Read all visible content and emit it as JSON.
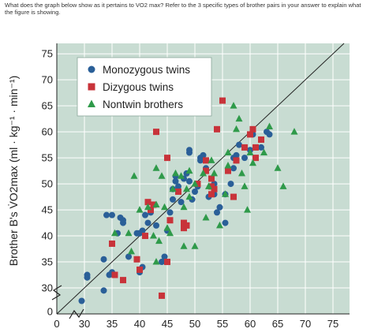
{
  "question": "What does the graph below show as it pertains to VO2 max? Refer to the 3 specific types of brother pairs in your answer to explain what the figure is showing.",
  "chart_data": {
    "type": "scatter",
    "title": "",
    "xlabel": "",
    "ylabel": "Brother B's V̇O2max (ml · kg⁻¹ · min⁻¹)",
    "xlim": [
      25,
      78
    ],
    "ylim": [
      25,
      77
    ],
    "x_ticks": [
      "0",
      "30",
      "35",
      "40",
      "45",
      "50",
      "55",
      "60",
      "65",
      "70",
      "75"
    ],
    "y_ticks": [
      "0",
      "30",
      "35",
      "40",
      "45",
      "50",
      "55",
      "60",
      "65",
      "70",
      "75"
    ],
    "axis_break": true,
    "grid": true,
    "identity_line": true,
    "legend_position": "top-left",
    "colors": {
      "plot_bg": "#c8dcd2",
      "grid": "#ffffff",
      "mono": "#2a5f98",
      "diz": "#c8333a",
      "nonw": "#2f9a4a"
    },
    "series": [
      {
        "name": "Monozygous twins",
        "marker": "circle",
        "color": "#2a5f98",
        "points": [
          [
            29.5,
            27.5
          ],
          [
            30.5,
            32.5
          ],
          [
            30.5,
            32
          ],
          [
            33.5,
            29.5
          ],
          [
            33.5,
            35.5
          ],
          [
            34,
            44
          ],
          [
            34.5,
            32.5
          ],
          [
            35,
            33
          ],
          [
            35,
            44
          ],
          [
            36.5,
            43.5
          ],
          [
            37,
            42.5
          ],
          [
            37,
            43
          ],
          [
            39.5,
            40.5
          ],
          [
            40,
            40.5
          ],
          [
            40.5,
            41
          ],
          [
            40,
            33
          ],
          [
            40.5,
            34
          ],
          [
            41,
            44
          ],
          [
            41.5,
            42.5
          ],
          [
            42,
            44.5
          ],
          [
            43,
            42
          ],
          [
            44.5,
            36
          ],
          [
            45,
            41
          ],
          [
            45.5,
            44.5
          ],
          [
            46,
            49
          ],
          [
            46.5,
            51.5
          ],
          [
            46.5,
            50.5
          ],
          [
            47.5,
            46.5
          ],
          [
            48,
            51
          ],
          [
            48.5,
            52
          ],
          [
            49,
            50.5
          ],
          [
            49,
            56
          ],
          [
            49,
            56.5
          ],
          [
            49.5,
            47
          ],
          [
            50,
            48.5
          ],
          [
            50.5,
            49.5
          ],
          [
            51,
            55
          ],
          [
            51,
            54.5
          ],
          [
            51.5,
            55.5
          ],
          [
            52,
            53
          ],
          [
            52.5,
            47.5
          ],
          [
            53.5,
            50
          ],
          [
            53.5,
            48
          ],
          [
            54,
            44.5
          ],
          [
            54.5,
            45.5
          ],
          [
            55.5,
            48
          ],
          [
            56.5,
            50
          ],
          [
            57,
            53
          ],
          [
            57,
            55
          ],
          [
            57.5,
            54.5
          ],
          [
            57.5,
            55.5
          ],
          [
            58,
            57.5
          ],
          [
            59,
            55
          ],
          [
            60,
            56.5
          ],
          [
            60.5,
            59.5
          ],
          [
            62,
            57
          ],
          [
            63,
            60
          ],
          [
            63.5,
            59.5
          ],
          [
            46,
            47
          ],
          [
            47,
            49.5
          ],
          [
            36,
            40.5
          ],
          [
            38,
            36
          ],
          [
            44,
            35
          ],
          [
            55.5,
            42.5
          ]
        ]
      },
      {
        "name": "Dizygous twins",
        "marker": "square",
        "color": "#c8333a",
        "points": [
          [
            35,
            38.5
          ],
          [
            35.5,
            32.5
          ],
          [
            37,
            31.5
          ],
          [
            39.5,
            35.5
          ],
          [
            40,
            33.5
          ],
          [
            41,
            40
          ],
          [
            41.5,
            46.5
          ],
          [
            42,
            45
          ],
          [
            42.5,
            46
          ],
          [
            44,
            28.5
          ],
          [
            45,
            35
          ],
          [
            45,
            55
          ],
          [
            45.5,
            43
          ],
          [
            47,
            48.5
          ],
          [
            48,
            41.5
          ],
          [
            48,
            42.5
          ],
          [
            48.5,
            42
          ],
          [
            50.5,
            50
          ],
          [
            52,
            52.5
          ],
          [
            52,
            54.5
          ],
          [
            53,
            48
          ],
          [
            53,
            49.5
          ],
          [
            53,
            51
          ],
          [
            53.5,
            49
          ],
          [
            54,
            60.5
          ],
          [
            55,
            66
          ],
          [
            56,
            52.5
          ],
          [
            57,
            47.5
          ],
          [
            57.5,
            54.5
          ],
          [
            59,
            57
          ],
          [
            60,
            59.5
          ],
          [
            60.5,
            60.5
          ],
          [
            61,
            57
          ],
          [
            61,
            55
          ],
          [
            62,
            58.5
          ],
          [
            43,
            60
          ]
        ]
      },
      {
        "name": "Nontwin brothers",
        "marker": "triangle",
        "color": "#2f9a4a",
        "points": [
          [
            35.5,
            40.5
          ],
          [
            38,
            40.5
          ],
          [
            38.5,
            37
          ],
          [
            40,
            45
          ],
          [
            41.5,
            45.5
          ],
          [
            42.5,
            40
          ],
          [
            43,
            35
          ],
          [
            43,
            46
          ],
          [
            43.5,
            39
          ],
          [
            44,
            51.5
          ],
          [
            44.5,
            45.5
          ],
          [
            45,
            41.5
          ],
          [
            45.5,
            40.5
          ],
          [
            46,
            49
          ],
          [
            46.5,
            52
          ],
          [
            47.5,
            51.5
          ],
          [
            48,
            45.5
          ],
          [
            48.5,
            49
          ],
          [
            49,
            47.5
          ],
          [
            49,
            52.5
          ],
          [
            50,
            50
          ],
          [
            51.5,
            52
          ],
          [
            52,
            43.5
          ],
          [
            52.5,
            49.5
          ],
          [
            53.5,
            52
          ],
          [
            54.5,
            42
          ],
          [
            55.5,
            48
          ],
          [
            56,
            56
          ],
          [
            56,
            53.5
          ],
          [
            57,
            65
          ],
          [
            57.5,
            60.5
          ],
          [
            58,
            62.5
          ],
          [
            58.5,
            52
          ],
          [
            59,
            49.5
          ],
          [
            59.5,
            45
          ],
          [
            60,
            56
          ],
          [
            60.5,
            54
          ],
          [
            62.5,
            56
          ],
          [
            63.5,
            61
          ],
          [
            65,
            53
          ],
          [
            66,
            49.5
          ],
          [
            68,
            60
          ],
          [
            50,
            38
          ],
          [
            53,
            54.5
          ],
          [
            48,
            38
          ],
          [
            43,
            53
          ],
          [
            39,
            51.5
          ]
        ]
      }
    ]
  }
}
